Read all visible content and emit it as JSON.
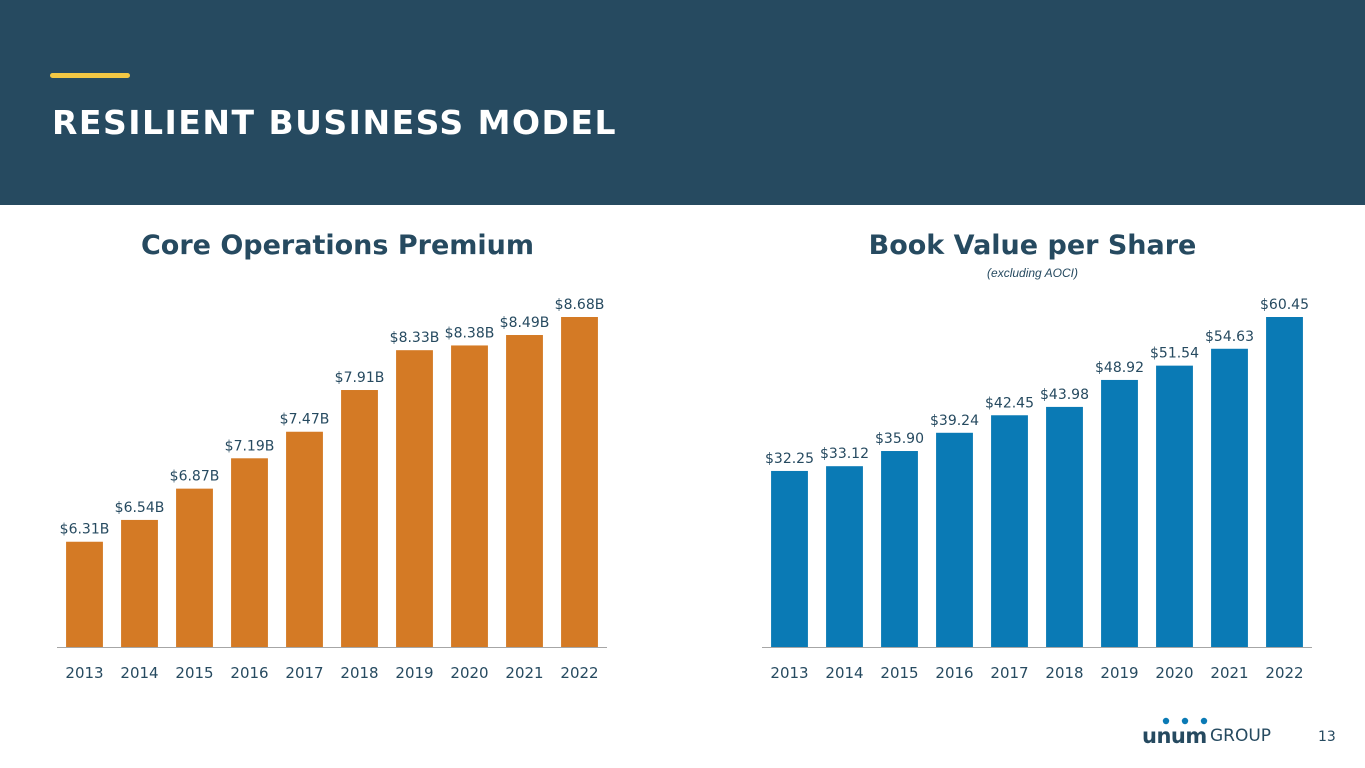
{
  "slide": {
    "title": "RESILIENT BUSINESS MODEL",
    "page_number": "13",
    "logo": {
      "brand": "unum",
      "suffix": "GROUP"
    },
    "colors": {
      "header_bg": "#264a60",
      "accent": "#f2c744",
      "premium_bar": "#d47a25",
      "bvps_bar": "#0a7ab5",
      "text": "#264a60"
    }
  },
  "chart_data": [
    {
      "type": "bar",
      "title": "Core Operations Premium",
      "subtitle": "",
      "categories": [
        "2013",
        "2014",
        "2015",
        "2016",
        "2017",
        "2018",
        "2019",
        "2020",
        "2021",
        "2022"
      ],
      "values": [
        6.31,
        6.54,
        6.87,
        7.19,
        7.47,
        7.91,
        8.33,
        8.38,
        8.49,
        8.68
      ],
      "value_labels": [
        "$6.31B",
        "$6.54B",
        "$6.87B",
        "$7.19B",
        "$7.47B",
        "$7.91B",
        "$8.33B",
        "$8.38B",
        "$8.49B",
        "$8.68B"
      ],
      "ylim": [
        5.2,
        8.68
      ],
      "xlabel": "",
      "ylabel": "",
      "grid": false
    },
    {
      "type": "bar",
      "title": "Book Value per Share",
      "subtitle": "(excluding AOCI)",
      "categories": [
        "2013",
        "2014",
        "2015",
        "2016",
        "2017",
        "2018",
        "2019",
        "2020",
        "2021",
        "2022"
      ],
      "values": [
        32.25,
        33.12,
        35.9,
        39.24,
        42.45,
        43.98,
        48.92,
        51.54,
        54.63,
        60.45
      ],
      "value_labels": [
        "$32.25",
        "$33.12",
        "$35.90",
        "$39.24",
        "$42.45",
        "$43.98",
        "$48.92",
        "$51.54",
        "$54.63",
        "$60.45"
      ],
      "ylim": [
        0,
        60.45
      ],
      "xlabel": "",
      "ylabel": "",
      "grid": false
    }
  ]
}
